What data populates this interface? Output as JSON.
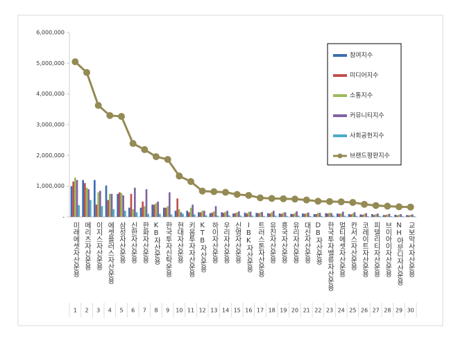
{
  "chart_data": {
    "type": "bar",
    "categories": [
      "미래에셋자산운용",
      "메리츠자산운용",
      "이지스자산운용",
      "에셋플러스자산운용",
      "삼성자산운용",
      "신한자산운용",
      "한화자산운용",
      "KB자산운용",
      "한국투자신탁운용",
      "현대자산운용",
      "키움투자자산운용",
      "KTB자산운용",
      "하이자산운용",
      "우리자산운용",
      "신영자산운용",
      "IBK자산운용",
      "트러스톤자산운용",
      "유진자산운용",
      "흥국자산운용",
      "유리자산운용",
      "대신자산운용",
      "DB자산운용",
      "한국투자밸류자산운용",
      "멀티에셋자산운용",
      "칸서스자산운용",
      "코레이트자산운용",
      "피델리티자산운용",
      "브이아이자산운용",
      "NH아문디자산운용",
      "교보악사자산운용"
    ],
    "ranks": [
      1,
      2,
      3,
      4,
      5,
      6,
      7,
      8,
      9,
      10,
      11,
      12,
      13,
      14,
      15,
      16,
      17,
      18,
      19,
      20,
      21,
      22,
      23,
      24,
      25,
      26,
      27,
      28,
      29,
      30
    ],
    "series": [
      {
        "name": "참여지수",
        "color": "#3e6db1",
        "values": [
          1000000,
          1200000,
          1200000,
          1020000,
          750000,
          300000,
          300000,
          400000,
          300000,
          200000,
          200000,
          150000,
          120000,
          150000,
          110000,
          140000,
          130000,
          120000,
          110000,
          100000,
          110000,
          90000,
          120000,
          110000,
          90000,
          80000,
          90000,
          60000,
          70000,
          60000
        ]
      },
      {
        "name": "미디어지수",
        "color": "#c0504d",
        "values": [
          1150000,
          1100000,
          400000,
          550000,
          800000,
          750000,
          500000,
          400000,
          300000,
          600000,
          150000,
          150000,
          140000,
          130000,
          120000,
          110000,
          120000,
          110000,
          100000,
          90000,
          100000,
          90000,
          110000,
          100000,
          80000,
          70000,
          60000,
          60000,
          50000,
          50000
        ]
      },
      {
        "name": "소통지수",
        "color": "#9bbb59",
        "values": [
          1280000,
          950000,
          800000,
          750000,
          780000,
          250000,
          350000,
          450000,
          350000,
          250000,
          300000,
          200000,
          180000,
          170000,
          150000,
          160000,
          140000,
          150000,
          140000,
          130000,
          120000,
          130000,
          140000,
          120000,
          110000,
          100000,
          90000,
          80000,
          70000,
          70000
        ]
      },
      {
        "name": "커뮤니티지수",
        "color": "#8064a2",
        "values": [
          1200000,
          900000,
          850000,
          750000,
          700000,
          950000,
          900000,
          500000,
          800000,
          150000,
          400000,
          200000,
          350000,
          200000,
          180000,
          170000,
          160000,
          200000,
          150000,
          180000,
          140000,
          130000,
          120000,
          170000,
          150000,
          120000,
          110000,
          100000,
          90000,
          80000
        ]
      },
      {
        "name": "사회공헌지수",
        "color": "#4bacc6",
        "values": [
          380000,
          550000,
          350000,
          250000,
          200000,
          150000,
          100000,
          100000,
          80000,
          100000,
          80000,
          50000,
          40000,
          50000,
          40000,
          40000,
          30000,
          40000,
          30000,
          40000,
          30000,
          30000,
          40000,
          30000,
          30000,
          20000,
          30000,
          20000,
          20000,
          20000
        ]
      },
      {
        "name": "브랜드평판지수",
        "color": "#948a54",
        "line": true,
        "values": [
          5050000,
          4700000,
          3630000,
          3300000,
          3270000,
          2390000,
          2190000,
          1960000,
          1870000,
          1330000,
          1150000,
          840000,
          820000,
          800000,
          730000,
          700000,
          620000,
          600000,
          590000,
          580000,
          550000,
          510000,
          500000,
          490000,
          470000,
          410000,
          370000,
          350000,
          330000,
          320000
        ]
      }
    ],
    "ylim": [
      0,
      6000000
    ],
    "yticks": [
      {
        "value": 0,
        "label": "-"
      },
      {
        "value": 1000000,
        "label": "1,000,000"
      },
      {
        "value": 2000000,
        "label": "2,000,000"
      },
      {
        "value": 3000000,
        "label": "3,000,000"
      },
      {
        "value": 4000000,
        "label": "4,000,000"
      },
      {
        "value": 5000000,
        "label": "5,000,000"
      },
      {
        "value": 6000000,
        "label": "6,000,000"
      }
    ],
    "legend": "top-right"
  }
}
